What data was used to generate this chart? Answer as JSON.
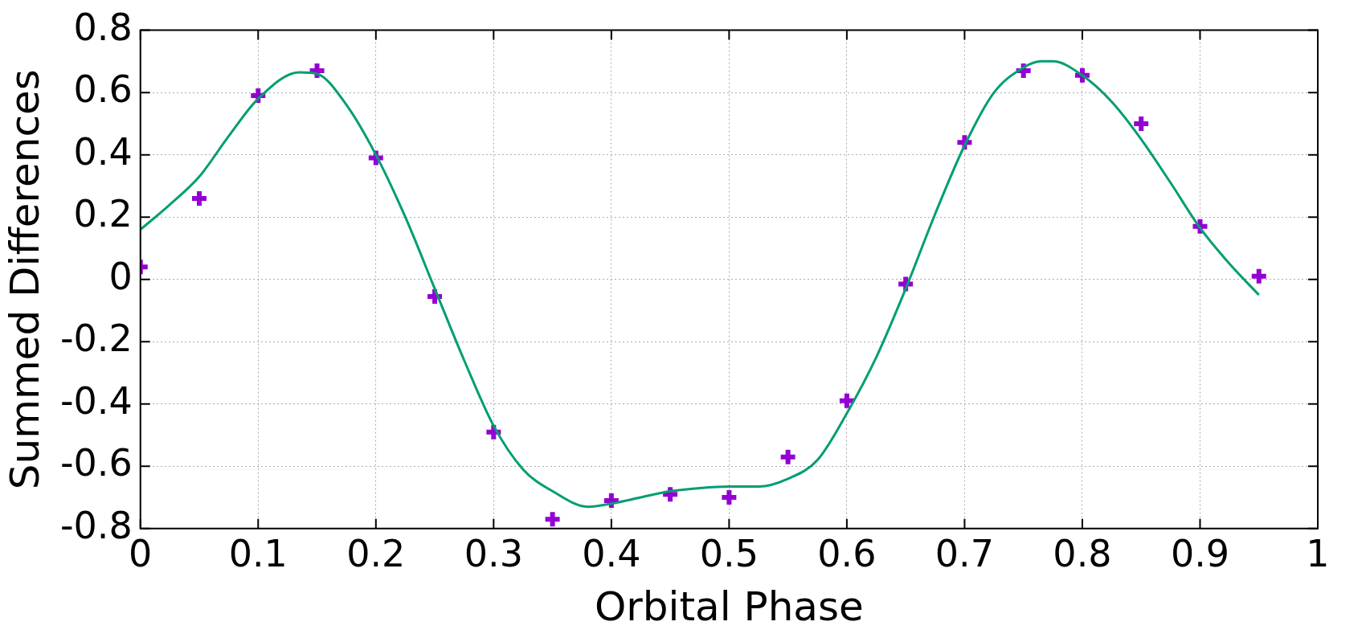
{
  "chart_data": {
    "type": "scatter",
    "xlabel": "Orbital Phase",
    "ylabel": "Summed Differences",
    "xlim": [
      0,
      1
    ],
    "ylim": [
      -0.8,
      0.8
    ],
    "xticks": [
      0,
      0.1,
      0.2,
      0.3,
      0.4,
      0.5,
      0.6,
      0.7,
      0.8,
      0.9,
      1
    ],
    "yticks": [
      -0.8,
      -0.6,
      -0.4,
      -0.2,
      0,
      0.2,
      0.4,
      0.6,
      0.8
    ],
    "grid": true,
    "legend": false,
    "series": [
      {
        "type": "line",
        "color": "#009e73",
        "marker": "none",
        "line_style": "solid",
        "x": [
          0,
          0.025,
          0.05,
          0.075,
          0.1,
          0.135,
          0.15,
          0.175,
          0.2,
          0.225,
          0.25,
          0.275,
          0.3,
          0.325,
          0.35,
          0.38,
          0.4,
          0.425,
          0.45,
          0.475,
          0.5,
          0.525,
          0.55,
          0.575,
          0.6,
          0.625,
          0.65,
          0.675,
          0.7,
          0.725,
          0.75,
          0.765,
          0.775,
          0.8,
          0.825,
          0.85,
          0.875,
          0.9,
          0.925,
          0.95
        ],
        "values": [
          0.16,
          0.24,
          0.33,
          0.46,
          0.58,
          0.665,
          0.66,
          0.56,
          0.4,
          0.2,
          -0.03,
          -0.26,
          -0.47,
          -0.61,
          -0.68,
          -0.73,
          -0.72,
          -0.7,
          -0.68,
          -0.67,
          -0.665,
          -0.665,
          -0.64,
          -0.58,
          -0.43,
          -0.25,
          -0.03,
          0.21,
          0.43,
          0.6,
          0.68,
          0.7,
          0.7,
          0.655,
          0.57,
          0.45,
          0.31,
          0.165,
          0.05,
          -0.05
        ]
      },
      {
        "type": "scatter",
        "color": "#9400d3",
        "marker": "cross",
        "x": [
          0,
          0.05,
          0.1,
          0.15,
          0.2,
          0.25,
          0.3,
          0.35,
          0.4,
          0.45,
          0.5,
          0.55,
          0.6,
          0.65,
          0.7,
          0.75,
          0.8,
          0.85,
          0.9,
          0.95
        ],
        "values": [
          0.04,
          0.26,
          0.59,
          0.67,
          0.39,
          -0.055,
          -0.49,
          -0.77,
          -0.71,
          -0.69,
          -0.7,
          -0.57,
          -0.39,
          -0.015,
          0.44,
          0.67,
          0.655,
          0.5,
          0.17,
          0.01
        ]
      }
    ]
  }
}
